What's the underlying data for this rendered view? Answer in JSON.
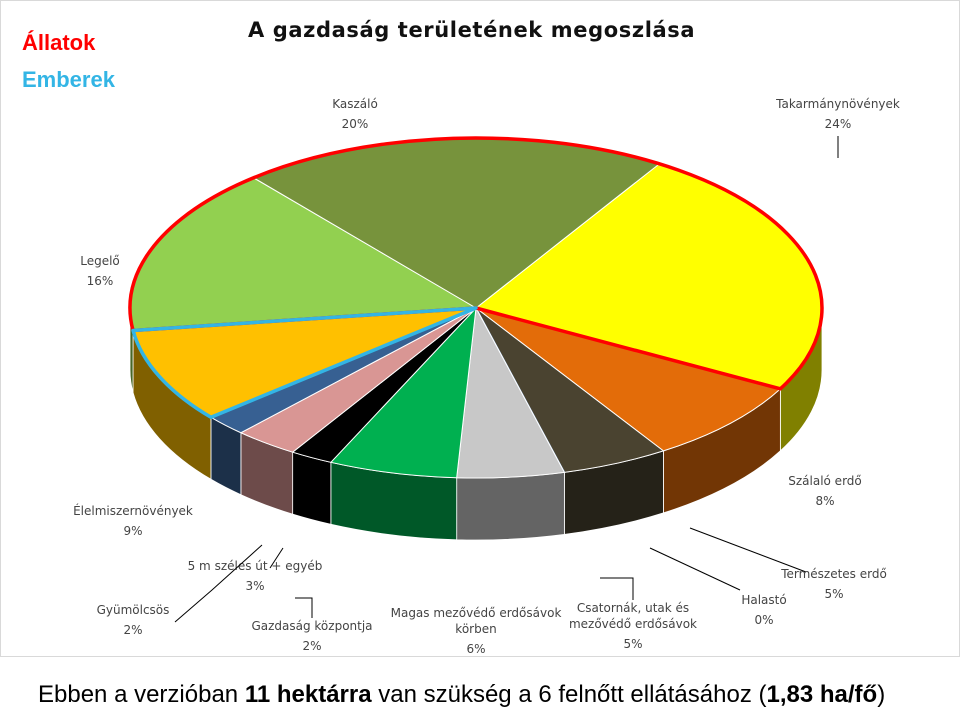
{
  "legend": {
    "animals": "Állatok",
    "people": "Emberek"
  },
  "colors": {
    "animals": "#ff0000",
    "people": "#33b5e5"
  },
  "footer": {
    "part1": "Ebben a verzióban ",
    "bold1": "11 hektárra",
    "part2": " van szükség a 6 felnőtt ellátásához (",
    "bold2": "1,83 ha/fő",
    "part3": ")"
  },
  "chart_data": {
    "type": "pie",
    "title": "A gazdaság területének megoszlása",
    "three_d": true,
    "slices": [
      {
        "name": "Takarmánynövények",
        "value": 24,
        "label": "24%",
        "color": "#ffff00",
        "group": "animals"
      },
      {
        "name": "Szálaló erdő",
        "value": 8,
        "label": "8%",
        "color": "#e36c09"
      },
      {
        "name": "Természetes erdő",
        "value": 5,
        "label": "5%",
        "color": "#4a4330"
      },
      {
        "name": "Halastó",
        "value": 0,
        "label": "0%",
        "color": "#8db3e2"
      },
      {
        "name": "Csatornák, utak és mezővédő erdősávok",
        "value": 5,
        "label": "5%",
        "color": "#c8c8c8"
      },
      {
        "name": "Magas mezővédő erdősávok körben",
        "value": 6,
        "label": "6%",
        "color": "#00b050"
      },
      {
        "name": "Gazdaság központja",
        "value": 2,
        "label": "2%",
        "color": "#000000"
      },
      {
        "name": "5 m széles út + egyéb",
        "value": 3,
        "label": "3%",
        "color": "#d99694"
      },
      {
        "name": "Gyümölcsös",
        "value": 2,
        "label": "2%",
        "color": "#376092"
      },
      {
        "name": "Élelmiszernövények",
        "value": 9,
        "label": "9%",
        "color": "#ffc000",
        "group": "people"
      },
      {
        "name": "Legelő",
        "value": 16,
        "label": "16%",
        "color": "#92d050",
        "group": "animals"
      },
      {
        "name": "Kaszáló",
        "value": 20,
        "label": "20%",
        "color": "#77933c",
        "group": "animals"
      }
    ]
  }
}
